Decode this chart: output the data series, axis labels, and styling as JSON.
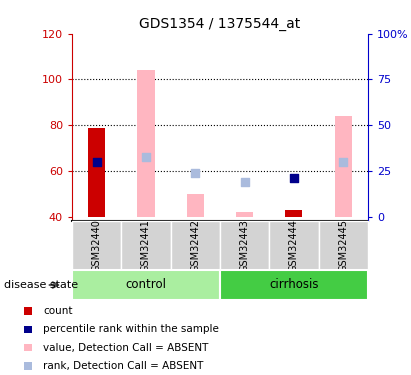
{
  "title": "GDS1354 / 1375544_at",
  "samples": [
    "GSM32440",
    "GSM32441",
    "GSM32442",
    "GSM32443",
    "GSM32444",
    "GSM32445"
  ],
  "groups": [
    {
      "name": "control",
      "indices": [
        0,
        1,
        2
      ],
      "color": "#90EE90"
    },
    {
      "name": "cirrhosis",
      "indices": [
        3,
        4,
        5
      ],
      "color": "#44CC44"
    }
  ],
  "ylim_left": [
    38,
    120
  ],
  "yticks_left": [
    40,
    60,
    80,
    100,
    120
  ],
  "ytick_labels_left": [
    "40",
    "60",
    "80",
    "100",
    "120"
  ],
  "yticks_right_pct": [
    0,
    25,
    50,
    75,
    100
  ],
  "ytick_labels_right": [
    "0",
    "25",
    "50",
    "75",
    "100%"
  ],
  "left_axis_color": "#CC0000",
  "right_axis_color": "#0000CC",
  "count_color": "#CC0000",
  "rank_color": "#00008B",
  "absent_value_color": "#FFB6C1",
  "absent_rank_color": "#AABBDD",
  "bar_bottom": 40,
  "count_values": [
    79,
    null,
    null,
    null,
    43,
    null
  ],
  "rank_values": [
    64,
    null,
    null,
    null,
    57,
    null
  ],
  "absent_value_tops": [
    null,
    104,
    50,
    42,
    null,
    84
  ],
  "absent_rank_values": [
    null,
    66,
    59,
    55,
    null,
    64
  ],
  "dotted_lines": [
    60,
    80,
    100
  ],
  "bar_width": 0.35,
  "legend_items": [
    {
      "color": "#CC0000",
      "label": "count"
    },
    {
      "color": "#00008B",
      "label": "percentile rank within the sample"
    },
    {
      "color": "#FFB6C1",
      "label": "value, Detection Call = ABSENT"
    },
    {
      "color": "#AABBDD",
      "label": "rank, Detection Call = ABSENT"
    }
  ],
  "disease_state_label": "disease state",
  "sample_box_color": "#D3D3D3",
  "figsize": [
    4.11,
    3.75
  ],
  "dpi": 100
}
